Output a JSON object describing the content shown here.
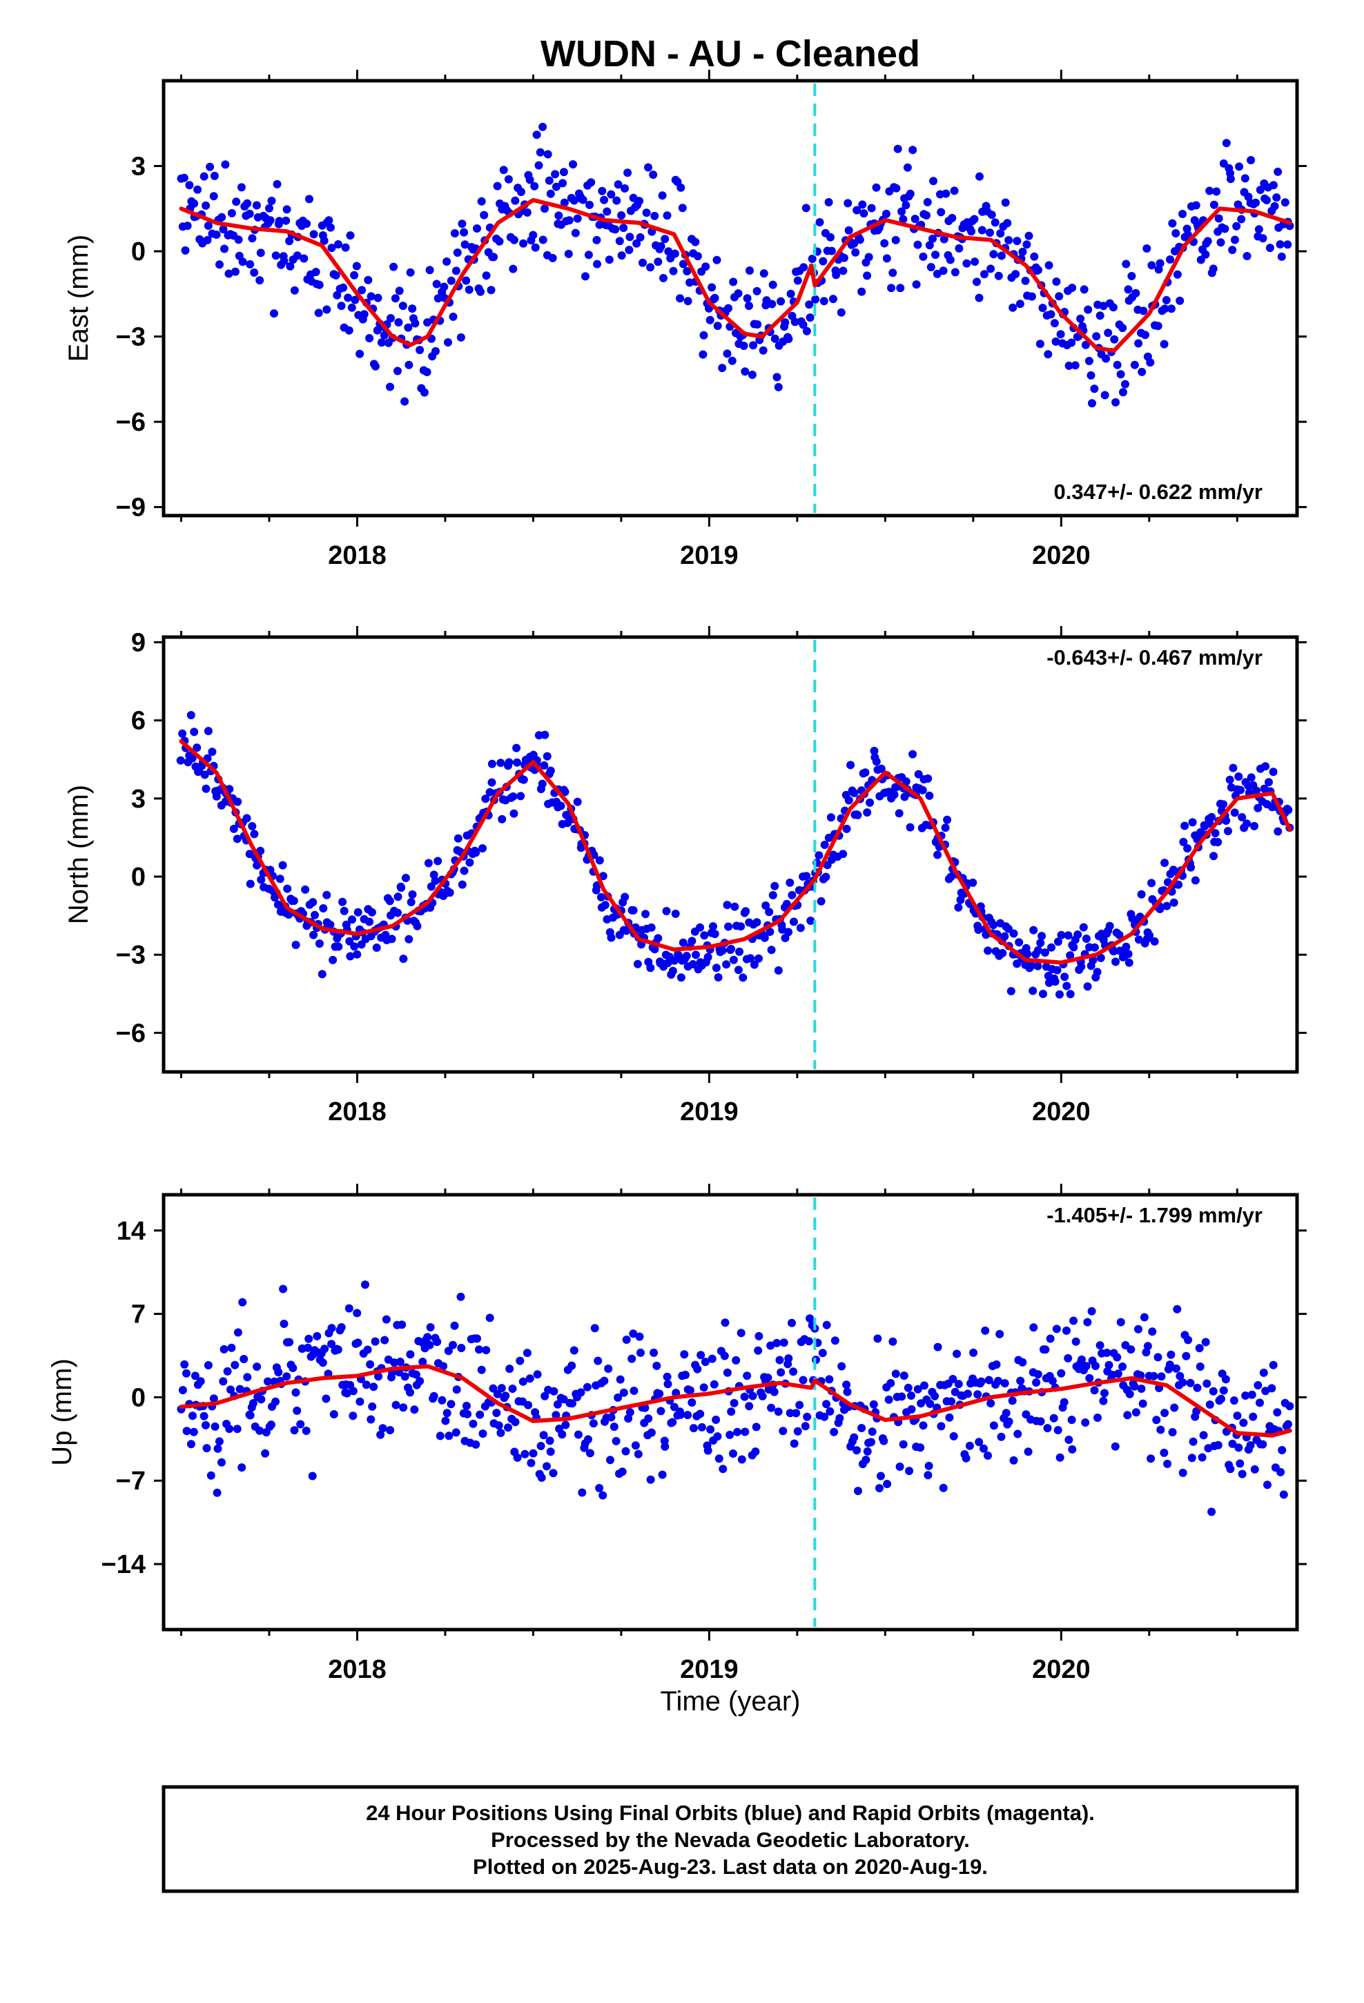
{
  "title": "WUDN  - AU - Cleaned",
  "xlabel": "Time (year)",
  "caption": {
    "lines": [
      "24 Hour Positions Using Final Orbits (blue) and Rapid Orbits (magenta).",
      "Processed by the Nevada Geodetic Laboratory.",
      "Plotted on 2025-Aug-23. Last data on 2020-Aug-19."
    ]
  },
  "colors": {
    "points": "#0000ee",
    "trend": "#ee0000",
    "event_line": "#22dddd",
    "frame": "#000000"
  },
  "chart_data": [
    {
      "type": "scatter",
      "ylabel": "East (mm)",
      "rate_label": "0.347+/- 0.622 mm/yr",
      "rate_position": "bottom-right",
      "xlim": [
        2017.45,
        2020.67
      ],
      "ylim": [
        -9.3,
        6
      ],
      "x_ticks": [
        2018,
        2019,
        2020
      ],
      "y_ticks": [
        -9,
        -6,
        -3,
        0,
        3
      ],
      "event_line_x": 2019.3,
      "point_noise": 1.5,
      "point_seed": 11,
      "trend": {
        "x": [
          2017.5,
          2017.6,
          2017.7,
          2017.8,
          2017.9,
          2018.0,
          2018.1,
          2018.15,
          2018.2,
          2018.3,
          2018.4,
          2018.5,
          2018.6,
          2018.7,
          2018.8,
          2018.9,
          2019.0,
          2019.1,
          2019.15,
          2019.25,
          2019.29,
          2019.3,
          2019.4,
          2019.5,
          2019.6,
          2019.7,
          2019.8,
          2019.9,
          2020.0,
          2020.1,
          2020.15,
          2020.25,
          2020.35,
          2020.45,
          2020.55,
          2020.65
        ],
        "y": [
          1.5,
          1.0,
          0.8,
          0.7,
          0.2,
          -1.5,
          -3.0,
          -3.3,
          -3.0,
          -0.8,
          1.0,
          1.8,
          1.5,
          1.1,
          1.0,
          0.6,
          -1.8,
          -2.9,
          -3.0,
          -1.8,
          -0.5,
          -1.2,
          0.5,
          1.1,
          0.8,
          0.5,
          0.4,
          -0.5,
          -2.2,
          -3.4,
          -3.5,
          -2.2,
          0.2,
          1.5,
          1.4,
          1.0
        ]
      }
    },
    {
      "type": "scatter",
      "ylabel": "North (mm)",
      "rate_label": "-0.643+/- 0.467 mm/yr",
      "rate_position": "top-right",
      "xlim": [
        2017.45,
        2020.67
      ],
      "ylim": [
        -7.5,
        9.2
      ],
      "x_ticks": [
        2018,
        2019,
        2020
      ],
      "y_ticks": [
        -6,
        -3,
        0,
        3,
        6,
        9
      ],
      "event_line_x": 2019.3,
      "point_noise": 0.9,
      "point_seed": 23,
      "trend": {
        "x": [
          2017.5,
          2017.6,
          2017.7,
          2017.8,
          2017.9,
          2018.0,
          2018.1,
          2018.2,
          2018.3,
          2018.4,
          2018.5,
          2018.6,
          2018.7,
          2018.8,
          2018.9,
          2019.0,
          2019.1,
          2019.2,
          2019.3,
          2019.4,
          2019.5,
          2019.6,
          2019.7,
          2019.8,
          2019.9,
          2020.0,
          2020.1,
          2020.2,
          2020.3,
          2020.4,
          2020.5,
          2020.6,
          2020.65
        ],
        "y": [
          5.2,
          4.0,
          1.2,
          -1.2,
          -2.0,
          -2.2,
          -1.9,
          -1.0,
          0.8,
          3.2,
          4.4,
          2.8,
          -0.5,
          -2.4,
          -2.8,
          -2.7,
          -2.4,
          -1.7,
          -0.1,
          2.6,
          4.0,
          3.0,
          0.2,
          -2.2,
          -3.2,
          -3.3,
          -3.0,
          -2.2,
          -0.6,
          1.4,
          3.0,
          3.2,
          1.8
        ]
      }
    },
    {
      "type": "scatter",
      "ylabel": "Up (mm)",
      "rate_label": "-1.405+/- 1.799 mm/yr",
      "rate_position": "top-right",
      "xlim": [
        2017.45,
        2020.67
      ],
      "ylim": [
        -19.5,
        17
      ],
      "x_ticks": [
        2018,
        2019,
        2020
      ],
      "y_ticks": [
        -14,
        -7,
        0,
        7,
        14
      ],
      "event_line_x": 2019.3,
      "point_noise": 4.2,
      "point_seed": 37,
      "trend": {
        "x": [
          2017.5,
          2017.6,
          2017.7,
          2017.8,
          2017.9,
          2018.0,
          2018.1,
          2018.2,
          2018.3,
          2018.4,
          2018.5,
          2018.6,
          2018.7,
          2018.8,
          2018.9,
          2019.0,
          2019.1,
          2019.2,
          2019.29,
          2019.3,
          2019.4,
          2019.5,
          2019.6,
          2019.7,
          2019.8,
          2019.9,
          2020.0,
          2020.1,
          2020.2,
          2020.3,
          2020.4,
          2020.5,
          2020.6,
          2020.65
        ],
        "y": [
          -0.8,
          -0.5,
          0.4,
          1.2,
          1.6,
          1.8,
          2.4,
          2.6,
          1.6,
          -0.5,
          -2.0,
          -1.8,
          -1.2,
          -0.6,
          0.0,
          0.3,
          0.8,
          1.2,
          0.8,
          1.4,
          -0.6,
          -1.9,
          -1.6,
          -0.8,
          0.0,
          0.4,
          0.7,
          1.2,
          1.6,
          1.0,
          -1.0,
          -3.0,
          -3.2,
          -2.8
        ]
      }
    }
  ]
}
